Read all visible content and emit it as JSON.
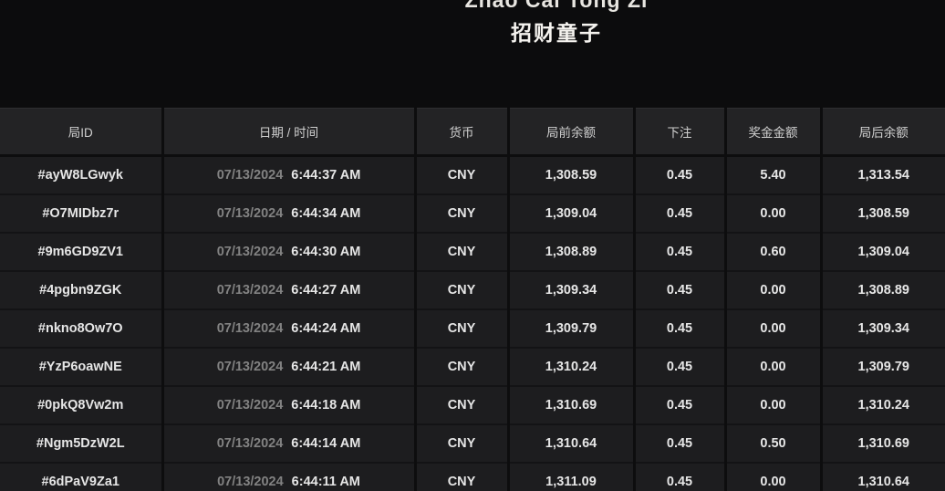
{
  "colors": {
    "page-bg": "#0c0c0d",
    "header-bg": "#232325",
    "row-bg": "#1d1d1f",
    "separator": "#0d0d0e",
    "row-line": "#131315",
    "header-text": "#d0d0d0",
    "cell-text": "#e6e6e6",
    "date-text": "#828282",
    "title-text": "#f5f3ef"
  },
  "header": {
    "clipped_top_text": "Zhao Cai Tong Zi",
    "game_title": "招财童子"
  },
  "table": {
    "columns": [
      {
        "key": "id",
        "label": "局ID"
      },
      {
        "key": "datetime",
        "label": "日期 / 时间"
      },
      {
        "key": "currency",
        "label": "货币"
      },
      {
        "key": "balance_before",
        "label": "局前余额"
      },
      {
        "key": "bet",
        "label": "下注"
      },
      {
        "key": "prize",
        "label": "奖金金额"
      },
      {
        "key": "balance_after",
        "label": "局后余额"
      }
    ],
    "rows": [
      {
        "id": "#ayW8LGwyk",
        "date": "07/13/2024",
        "time": "6:44:37 AM",
        "currency": "CNY",
        "balance_before": "1,308.59",
        "bet": "0.45",
        "prize": "5.40",
        "balance_after": "1,313.54"
      },
      {
        "id": "#O7MIDbz7r",
        "date": "07/13/2024",
        "time": "6:44:34 AM",
        "currency": "CNY",
        "balance_before": "1,309.04",
        "bet": "0.45",
        "prize": "0.00",
        "balance_after": "1,308.59"
      },
      {
        "id": "#9m6GD9ZV1",
        "date": "07/13/2024",
        "time": "6:44:30 AM",
        "currency": "CNY",
        "balance_before": "1,308.89",
        "bet": "0.45",
        "prize": "0.60",
        "balance_after": "1,309.04"
      },
      {
        "id": "#4pgbn9ZGK",
        "date": "07/13/2024",
        "time": "6:44:27 AM",
        "currency": "CNY",
        "balance_before": "1,309.34",
        "bet": "0.45",
        "prize": "0.00",
        "balance_after": "1,308.89"
      },
      {
        "id": "#nkno8Ow7O",
        "date": "07/13/2024",
        "time": "6:44:24 AM",
        "currency": "CNY",
        "balance_before": "1,309.79",
        "bet": "0.45",
        "prize": "0.00",
        "balance_after": "1,309.34"
      },
      {
        "id": "#YzP6oawNE",
        "date": "07/13/2024",
        "time": "6:44:21 AM",
        "currency": "CNY",
        "balance_before": "1,310.24",
        "bet": "0.45",
        "prize": "0.00",
        "balance_after": "1,309.79"
      },
      {
        "id": "#0pkQ8Vw2m",
        "date": "07/13/2024",
        "time": "6:44:18 AM",
        "currency": "CNY",
        "balance_before": "1,310.69",
        "bet": "0.45",
        "prize": "0.00",
        "balance_after": "1,310.24"
      },
      {
        "id": "#Ngm5DzW2L",
        "date": "07/13/2024",
        "time": "6:44:14 AM",
        "currency": "CNY",
        "balance_before": "1,310.64",
        "bet": "0.45",
        "prize": "0.50",
        "balance_after": "1,310.69"
      },
      {
        "id": "#6dPaV9Za1",
        "date": "07/13/2024",
        "time": "6:44:11 AM",
        "currency": "CNY",
        "balance_before": "1,311.09",
        "bet": "0.45",
        "prize": "0.00",
        "balance_after": "1,310.64"
      }
    ]
  }
}
